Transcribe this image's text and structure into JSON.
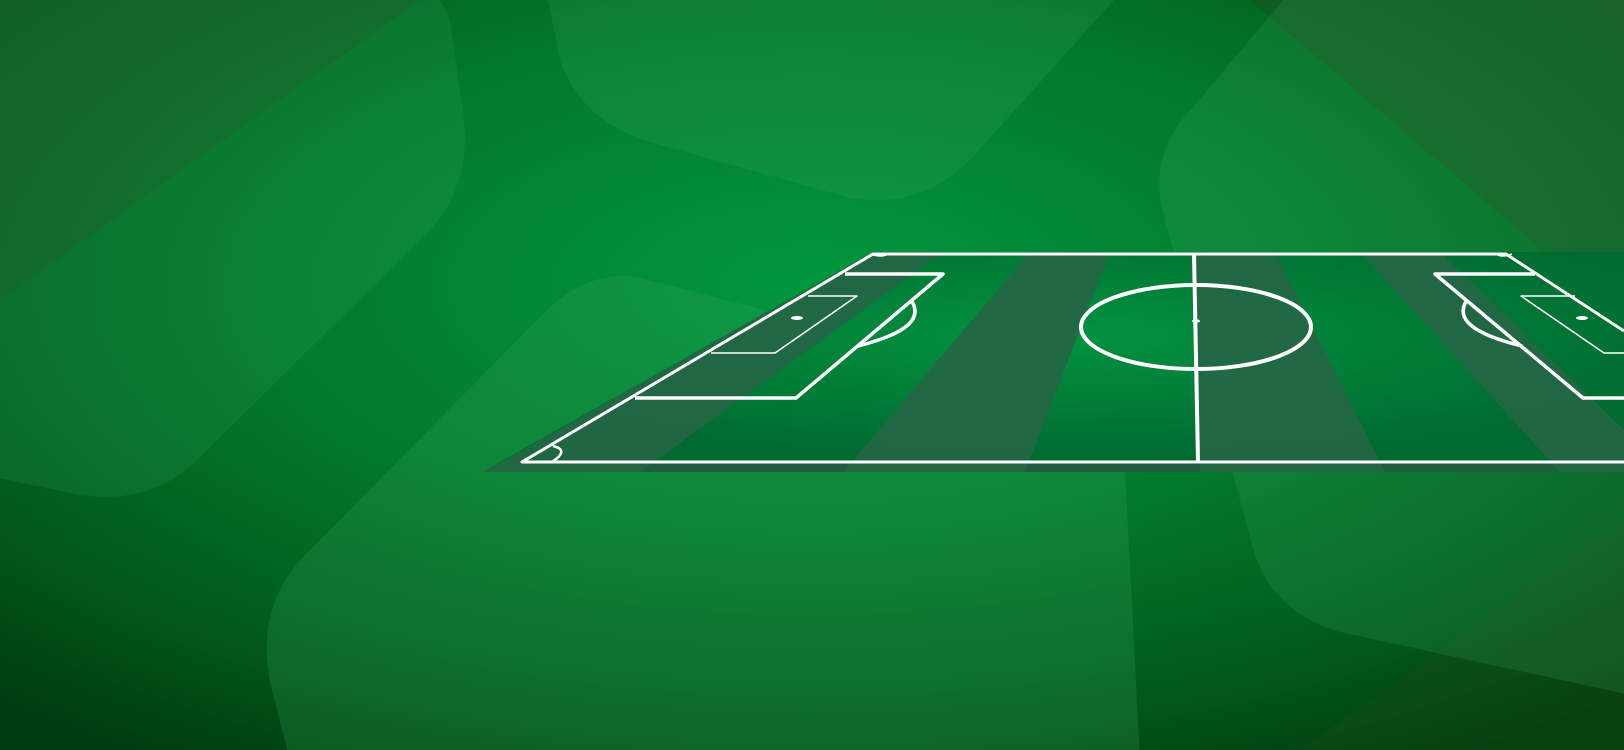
{
  "scene": {
    "description_label": "",
    "colors": {
      "background_center": "#02963f",
      "background_mid": "#027a2a",
      "background_edge": "#003b0f",
      "background_corner": "#1d4d1f",
      "hexagon_fill": "#3aa864",
      "pitch_stripe_dark": "#236645",
      "pitch_stripe_light": "#00843a",
      "pitch_edge": "#1f5c3d",
      "pitch_lines": "#ffffff"
    },
    "icons": [
      "soccer-pitch-icon"
    ]
  }
}
